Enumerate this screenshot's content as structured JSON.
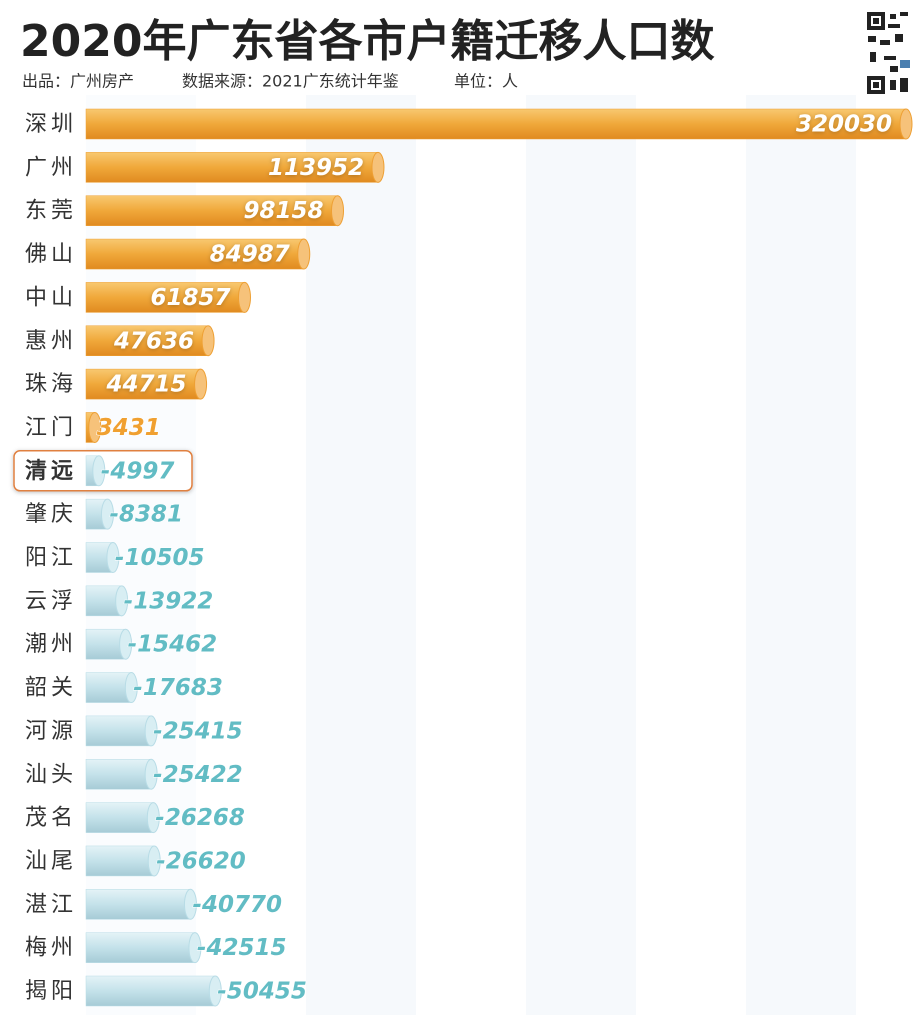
{
  "chart_data": {
    "type": "bar",
    "orientation": "horizontal",
    "title": "2020年广东省各市户籍迁移人口数",
    "credits": [
      "出品：广州房产",
      "数据来源：2021广东统计年鉴",
      "单位：人"
    ],
    "categories": [
      "深圳",
      "广州",
      "东莞",
      "佛山",
      "中山",
      "惠州",
      "珠海",
      "江门",
      "清远",
      "肇庆",
      "阳江",
      "云浮",
      "潮州",
      "韶关",
      "河源",
      "汕头",
      "茂名",
      "汕尾",
      "湛江",
      "梅州",
      "揭阳"
    ],
    "values": [
      320030,
      113952,
      98158,
      84987,
      61857,
      47636,
      44715,
      3431,
      -4997,
      -8381,
      -10505,
      -13922,
      -15462,
      -17683,
      -25415,
      -25422,
      -26268,
      -26620,
      -40770,
      -42515,
      -50455
    ],
    "positive_color": "#eea034",
    "negative_color": "#b8dce6",
    "positive_label_color": "#f0a030",
    "negative_label_color": "#62bcc4",
    "highlight": "清远",
    "highlight_color": "#d02020"
  }
}
